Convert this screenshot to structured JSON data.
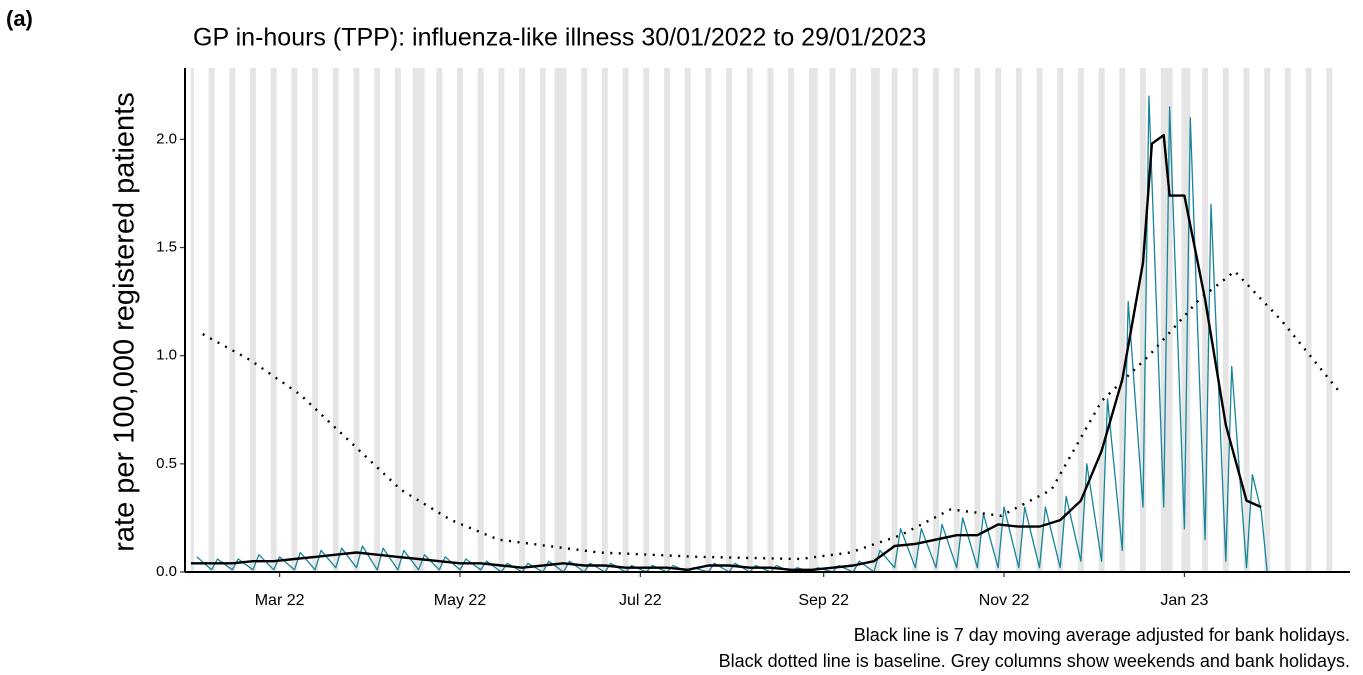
{
  "panel_label": "(a)",
  "chart_data": {
    "type": "line",
    "title": "GP in-hours (TPP): influenza-like illness 30/01/2022 to 29/01/2023",
    "y_label": "rate per 100,000 registered patients",
    "notes": [
      "Black line is 7 day moving average adjusted for bank holidays.",
      "Black dotted line is baseline. Grey columns show weekends and bank holidays."
    ],
    "xlim": [
      -2,
      392
    ],
    "ylim": [
      0,
      2.33
    ],
    "xticks": [
      {
        "value": 30,
        "label": "Mar 22"
      },
      {
        "value": 91,
        "label": "May 22"
      },
      {
        "value": 152,
        "label": "Jul 22"
      },
      {
        "value": 214,
        "label": "Sep 22"
      },
      {
        "value": 275,
        "label": "Nov 22"
      },
      {
        "value": 336,
        "label": "Jan 23"
      }
    ],
    "yticks": [
      {
        "value": 0,
        "label": "0.0"
      },
      0.5,
      {
        "value": 1,
        "label": "1.0"
      },
      1.5,
      {
        "value": 2,
        "label": "2.0"
      }
    ],
    "grid": false,
    "shade_color": "#e5e5e5",
    "shaded_periods": [
      [
        0,
        1
      ],
      [
        6,
        8
      ],
      [
        13,
        15
      ],
      [
        20,
        22
      ],
      [
        27,
        29
      ],
      [
        34,
        36
      ],
      [
        41,
        43
      ],
      [
        48,
        50
      ],
      [
        55,
        57
      ],
      [
        62,
        64
      ],
      [
        69,
        71
      ],
      [
        75,
        79
      ],
      [
        83,
        85
      ],
      [
        90,
        92
      ],
      [
        97,
        99
      ],
      [
        104,
        106
      ],
      [
        111,
        113
      ],
      [
        118,
        120
      ],
      [
        123,
        127
      ],
      [
        132,
        134
      ],
      [
        139,
        141
      ],
      [
        146,
        148
      ],
      [
        153,
        155
      ],
      [
        160,
        162
      ],
      [
        167,
        169
      ],
      [
        174,
        176
      ],
      [
        181,
        183
      ],
      [
        188,
        190
      ],
      [
        195,
        197
      ],
      [
        202,
        204
      ],
      [
        209,
        212
      ],
      [
        216,
        218
      ],
      [
        223,
        225
      ],
      [
        230,
        233
      ],
      [
        237,
        239
      ],
      [
        244,
        246
      ],
      [
        251,
        253
      ],
      [
        258,
        260
      ],
      [
        265,
        267
      ],
      [
        272,
        274
      ],
      [
        279,
        281
      ],
      [
        286,
        288
      ],
      [
        293,
        295
      ],
      [
        300,
        302
      ],
      [
        307,
        309
      ],
      [
        314,
        316
      ],
      [
        321,
        323
      ],
      [
        328,
        332
      ],
      [
        335,
        338
      ],
      [
        342,
        344
      ],
      [
        349,
        351
      ],
      [
        356,
        358
      ],
      [
        363,
        365
      ],
      [
        370,
        372
      ],
      [
        377,
        379
      ],
      [
        384,
        386
      ]
    ],
    "series": [
      {
        "color": "#16859a",
        "style": "thin",
        "x": [
          2,
          7,
          9,
          14,
          16,
          21,
          23,
          28,
          30,
          35,
          37,
          42,
          44,
          49,
          51,
          56,
          58,
          63,
          65,
          70,
          72,
          77,
          79,
          84,
          86,
          91,
          93,
          98,
          100,
          105,
          107,
          112,
          114,
          119,
          121,
          126,
          128,
          133,
          135,
          140,
          142,
          147,
          149,
          154,
          156,
          161,
          163,
          168,
          170,
          175,
          177,
          182,
          184,
          189,
          191,
          196,
          198,
          203,
          205,
          210,
          212,
          217,
          219,
          224,
          226,
          231,
          233,
          238,
          240,
          245,
          247,
          252,
          254,
          259,
          261,
          266,
          268,
          273,
          275,
          280,
          282,
          287,
          289,
          294,
          296,
          301,
          303,
          308,
          310,
          315,
          317,
          322,
          324,
          329,
          331,
          336,
          338,
          343,
          345,
          350,
          352,
          357,
          359,
          362,
          364
        ],
        "values": [
          0.07,
          0.01,
          0.06,
          0.01,
          0.06,
          0.01,
          0.08,
          0.01,
          0.07,
          0.01,
          0.09,
          0.01,
          0.1,
          0.02,
          0.11,
          0.02,
          0.12,
          0.01,
          0.11,
          0.01,
          0.1,
          0.01,
          0.08,
          0.01,
          0.07,
          0.01,
          0.06,
          0.01,
          0.05,
          0,
          0.04,
          0,
          0.04,
          0,
          0.05,
          0,
          0.05,
          0,
          0.04,
          0,
          0.04,
          0,
          0.03,
          0,
          0.03,
          0,
          0.03,
          0,
          0.02,
          0,
          0.04,
          0,
          0.04,
          0,
          0.03,
          0,
          0.03,
          0,
          0.02,
          0,
          0.02,
          0,
          0.03,
          0,
          0.05,
          0,
          0.1,
          0.02,
          0.2,
          0.02,
          0.2,
          0.02,
          0.22,
          0.02,
          0.25,
          0.02,
          0.27,
          0.02,
          0.3,
          0.02,
          0.3,
          0.02,
          0.3,
          0.02,
          0.35,
          0.05,
          0.5,
          0.05,
          0.8,
          0.1,
          1.25,
          0.3,
          2.2,
          0.3,
          2.15,
          0.2,
          2.1,
          0.15,
          1.7,
          0.05,
          0.95,
          0.02,
          0.45,
          0.28,
          0
        ]
      },
      {
        "color": "#000000",
        "style": "solid",
        "x": [
          0,
          7,
          14,
          21,
          28,
          35,
          42,
          49,
          56,
          63,
          70,
          77,
          84,
          91,
          98,
          105,
          112,
          119,
          126,
          133,
          140,
          147,
          154,
          161,
          168,
          175,
          182,
          189,
          196,
          203,
          210,
          217,
          224,
          231,
          238,
          245,
          252,
          259,
          266,
          273,
          280,
          287,
          294,
          301,
          308,
          315,
          322,
          325,
          329,
          331,
          336,
          343,
          350,
          357,
          362
        ],
        "values": [
          0.04,
          0.04,
          0.04,
          0.05,
          0.05,
          0.06,
          0.07,
          0.08,
          0.09,
          0.08,
          0.07,
          0.06,
          0.05,
          0.04,
          0.04,
          0.03,
          0.02,
          0.03,
          0.04,
          0.03,
          0.03,
          0.02,
          0.02,
          0.02,
          0.01,
          0.03,
          0.03,
          0.02,
          0.02,
          0.01,
          0.01,
          0.02,
          0.03,
          0.05,
          0.12,
          0.13,
          0.15,
          0.17,
          0.17,
          0.22,
          0.21,
          0.21,
          0.24,
          0.33,
          0.56,
          0.89,
          1.43,
          1.98,
          2.02,
          1.74,
          1.74,
          1.26,
          0.68,
          0.33,
          0.3
        ]
      },
      {
        "color": "#000000",
        "style": "dotted",
        "x": [
          4,
          20,
          37,
          54,
          71,
          88,
          104,
          138,
          172,
          206,
          223,
          240,
          257,
          274,
          291,
          308,
          324,
          341,
          353,
          369,
          388
        ],
        "values": [
          1.1,
          0.98,
          0.82,
          0.6,
          0.38,
          0.24,
          0.15,
          0.09,
          0.07,
          0.06,
          0.09,
          0.17,
          0.29,
          0.26,
          0.38,
          0.79,
          1.0,
          1.26,
          1.39,
          1.16,
          0.84
        ]
      }
    ]
  }
}
